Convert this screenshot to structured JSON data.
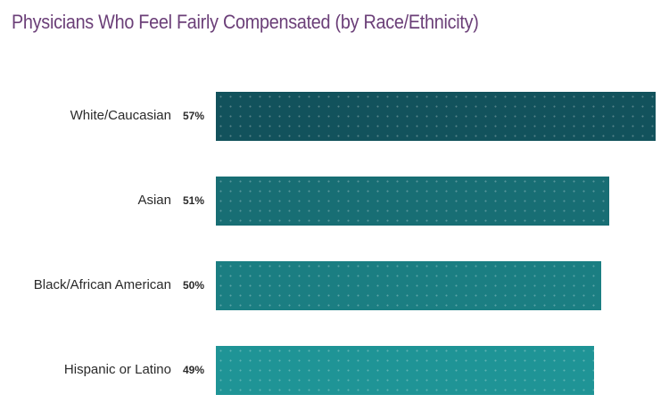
{
  "chart_data": {
    "type": "bar",
    "orientation": "horizontal",
    "title": "Physicians Who Feel Fairly Compensated (by Race/Ethnicity)",
    "categories": [
      "White/Caucasian",
      "Asian",
      "Black/African American",
      "Hispanic or Latino"
    ],
    "values": [
      57,
      51,
      50,
      49
    ],
    "value_labels": [
      "57%",
      "51%",
      "50%",
      "49%"
    ],
    "colors": [
      "#12525c",
      "#186e74",
      "#1b7e82",
      "#1f9496"
    ],
    "xlabel": "",
    "ylabel": "",
    "xlim": [
      0,
      57
    ],
    "grid": false
  }
}
